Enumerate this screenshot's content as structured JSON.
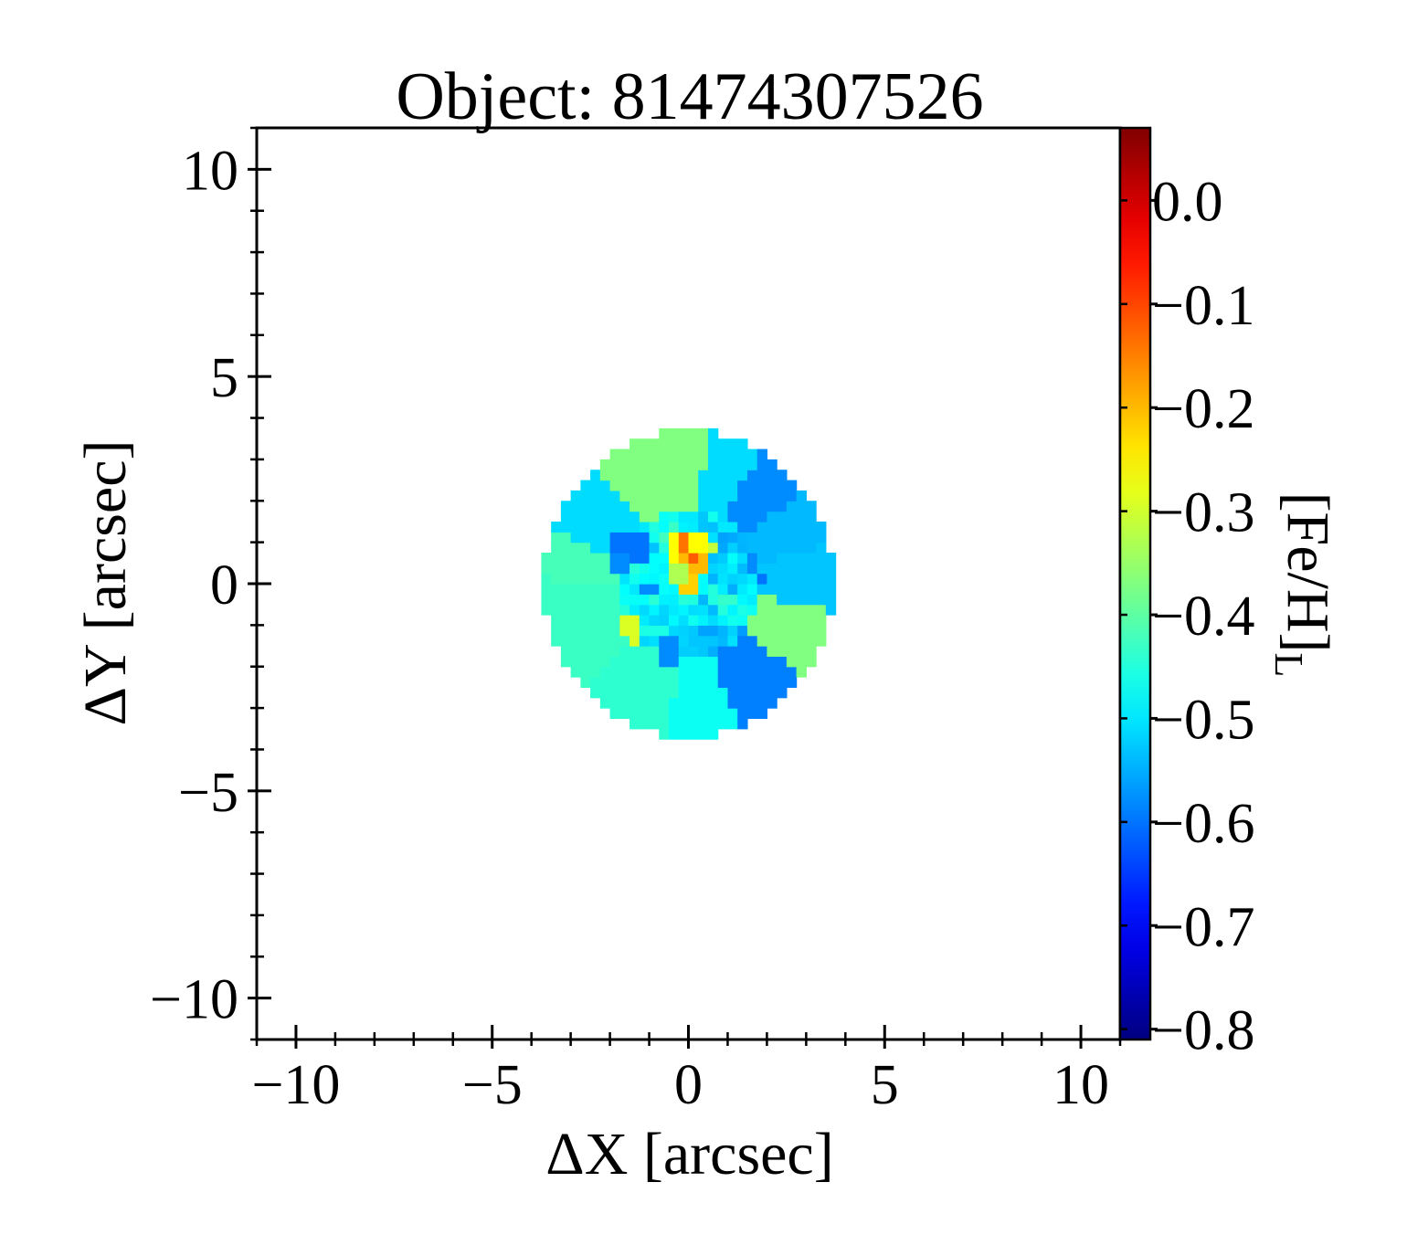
{
  "chart_data": {
    "type": "heatmap",
    "title": "Object: 81474307526",
    "xlabel": "ΔX [arcsec]",
    "ylabel": "ΔY [arcsec]",
    "xlim": [
      -11,
      11
    ],
    "ylim": [
      -11,
      11
    ],
    "xticks": [
      -10,
      -5,
      0,
      5,
      10
    ],
    "yticks": [
      -10,
      -5,
      0,
      5,
      10
    ],
    "xtick_labels": [
      "−10",
      "−5",
      "0",
      "5",
      "10"
    ],
    "ytick_labels": [
      "−10",
      "−5",
      "0",
      "5",
      "10"
    ],
    "colorbar": {
      "label": "[Fe/H]",
      "label_subscript": "L",
      "colormap": "jet",
      "vmin": -0.81,
      "vmax": 0.07,
      "ticks": [
        0.0,
        -0.1,
        -0.2,
        -0.3,
        -0.4,
        -0.5,
        -0.6,
        -0.7,
        -0.8
      ],
      "tick_labels": [
        "0.0",
        "−0.1",
        "−0.2",
        "−0.3",
        "−0.4",
        "−0.5",
        "−0.6",
        "−0.7",
        "−0.8"
      ]
    },
    "field": {
      "center": [
        0.0,
        0.0
      ],
      "radius_arcsec": 3.7,
      "pixel_arcsec": 0.25
    },
    "outer_sectors": [
      {
        "angle_from": 60,
        "angle_to": 82,
        "value": -0.51
      },
      {
        "angle_from": 82,
        "angle_to": 130,
        "value": -0.37
      },
      {
        "angle_from": 130,
        "angle_to": 160,
        "value": -0.51
      },
      {
        "angle_from": 160,
        "angle_to": 178,
        "value": -0.42
      },
      {
        "angle_from": 178,
        "angle_to": 225,
        "value": -0.43
      },
      {
        "angle_from": 225,
        "angle_to": 262,
        "value": -0.44
      },
      {
        "angle_from": 262,
        "angle_to": 290,
        "value": -0.47
      },
      {
        "angle_from": 290,
        "angle_to": 322,
        "value": -0.59
      },
      {
        "angle_from": 322,
        "angle_to": 350,
        "value": -0.37
      },
      {
        "angle_from": 350,
        "angle_to": 375,
        "value": -0.53
      },
      {
        "angle_from": 15,
        "angle_to": 38,
        "value": -0.54
      },
      {
        "angle_from": 38,
        "angle_to": 60,
        "value": -0.58
      }
    ],
    "inner_region": {
      "radius_arcsec": 1.8,
      "value": -0.5
    },
    "features": [
      {
        "x": 0.0,
        "y": 0.8,
        "w": 1.0,
        "h": 0.7,
        "value": -0.26
      },
      {
        "x": 0.2,
        "y": 0.5,
        "w": 0.75,
        "h": 0.5,
        "value": -0.2
      },
      {
        "x": 0.15,
        "y": 0.55,
        "w": 0.3,
        "h": 0.3,
        "value": -0.12
      },
      {
        "x": -0.15,
        "y": 1.0,
        "w": 0.2,
        "h": 0.3,
        "value": -0.14
      },
      {
        "x": 0.1,
        "y": -0.05,
        "w": 0.5,
        "h": 0.4,
        "value": -0.22
      },
      {
        "x": 0.6,
        "y": 0.9,
        "w": 0.3,
        "h": 0.35,
        "value": -0.31
      },
      {
        "x": -0.3,
        "y": 0.3,
        "w": 0.35,
        "h": 0.35,
        "value": -0.33
      },
      {
        "x": -1.5,
        "y": 0.9,
        "w": 0.8,
        "h": 0.6,
        "value": -0.6
      },
      {
        "x": -1.8,
        "y": 0.5,
        "w": 0.4,
        "h": 0.5,
        "value": -0.58
      },
      {
        "x": -1.5,
        "y": -1.0,
        "w": 0.7,
        "h": 0.5,
        "value": -0.29
      },
      {
        "x": -1.4,
        "y": -1.3,
        "w": 0.25,
        "h": 0.3,
        "value": -0.29
      },
      {
        "x": -0.6,
        "y": -1.6,
        "w": 0.5,
        "h": 0.8,
        "value": -0.58
      },
      {
        "x": -1.0,
        "y": -0.2,
        "w": 0.3,
        "h": 0.3,
        "value": -0.58
      },
      {
        "x": 0.5,
        "y": -1.15,
        "w": 0.4,
        "h": 0.3,
        "value": -0.56
      },
      {
        "x": 1.1,
        "y": -0.2,
        "w": 0.3,
        "h": 0.3,
        "value": -0.55
      },
      {
        "x": 1.6,
        "y": 0.5,
        "w": 0.3,
        "h": 0.4,
        "value": -0.58
      },
      {
        "x": 1.9,
        "y": 0.15,
        "w": 0.3,
        "h": 0.3,
        "value": -0.6
      }
    ]
  }
}
